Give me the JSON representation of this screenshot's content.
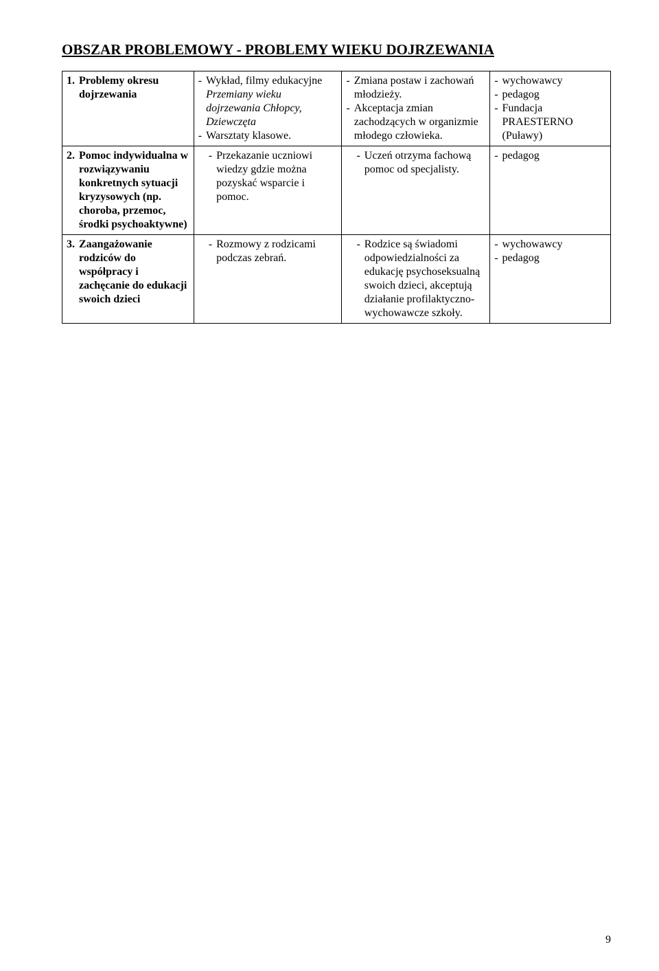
{
  "title": "OBSZAR PROBLEMOWY - PROBLEMY WIEKU DOJRZEWANIA",
  "pageNumber": "9",
  "rows": [
    {
      "col1_num": "1.",
      "col1_label": "Problemy okresu dojrzewania",
      "col2_a_prefix": "-  ",
      "col2_a_lead": "Wykład, filmy edukacyjne",
      "col2_a_italic": "Przemiany wieku dojrzewania Chłopcy, Dziewczęta",
      "col2_b": "Warsztaty klasowe.",
      "col3_a": "Zmiana postaw i zachowań młodzieży.",
      "col3_b": "Akceptacja zmian zachodzących w organizmie młodego człowieka.",
      "col4_a": "wychowawcy",
      "col4_b": "pedagog",
      "col4_c": "Fundacja PRAESTERNO (Puławy)"
    },
    {
      "col1_num": "2.",
      "col1_label": "Pomoc indywidualna w rozwiązywaniu konkretnych sytuacji kryzysowych (np. choroba, przemoc, środki psychoaktywne)",
      "col2_a": "Przekazanie uczniowi wiedzy gdzie można pozyskać wsparcie i pomoc.",
      "col3_a": "Uczeń otrzyma fachową pomoc od specjalisty.",
      "col4_a": "pedagog"
    },
    {
      "col1_num": "3.",
      "col1_label": "Zaangażowanie rodziców do współpracy i zachęcanie do edukacji swoich dzieci",
      "col2_a": "Rozmowy z rodzicami podczas zebrań.",
      "col3_a": "Rodzice są świadomi odpowiedzialności za edukację psychoseksualną swoich dzieci, akceptują działanie profilaktyczno-wychowawcze szkoły.",
      "col4_a": "wychowawcy",
      "col4_b": "pedagog"
    }
  ]
}
